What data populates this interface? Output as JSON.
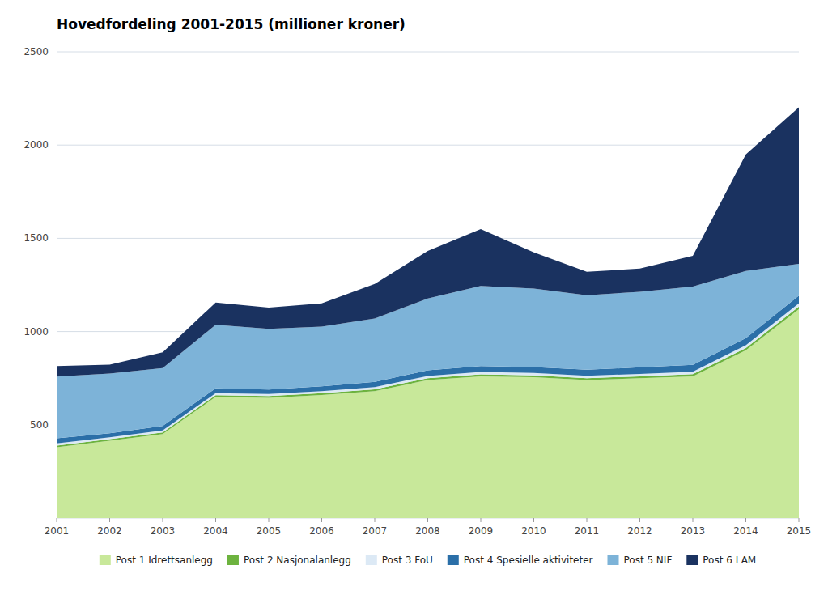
{
  "chart_data": {
    "type": "area",
    "stacked": true,
    "title": "Hovedfordeling 2001-2015 (millioner kroner)",
    "x": [
      2001,
      2002,
      2003,
      2004,
      2005,
      2006,
      2007,
      2008,
      2009,
      2010,
      2011,
      2012,
      2013,
      2014,
      2015
    ],
    "series": [
      {
        "name": "Post 1 Idrettsanlegg",
        "color": "#c8e89a",
        "values": [
          380,
          415,
          450,
          650,
          645,
          660,
          680,
          740,
          760,
          755,
          740,
          750,
          760,
          900,
          1120
        ]
      },
      {
        "name": "Post 2 Nasjonalanlegg",
        "color": "#6db33f",
        "values": [
          8,
          8,
          9,
          9,
          9,
          9,
          10,
          10,
          10,
          10,
          10,
          10,
          11,
          12,
          14
        ]
      },
      {
        "name": "Post 3 FoU",
        "color": "#dce9f5",
        "values": [
          12,
          10,
          11,
          11,
          11,
          11,
          12,
          12,
          13,
          13,
          13,
          13,
          14,
          15,
          17
        ]
      },
      {
        "name": "Post 4 Spesielle aktiviteter",
        "color": "#2b6fa8",
        "values": [
          28,
          22,
          24,
          26,
          24,
          26,
          28,
          30,
          32,
          32,
          32,
          35,
          36,
          38,
          42
        ]
      },
      {
        "name": "Post 5 NIF",
        "color": "#7db3d8",
        "values": [
          330,
          320,
          310,
          340,
          325,
          320,
          340,
          385,
          430,
          420,
          400,
          405,
          420,
          360,
          170
        ]
      },
      {
        "name": "Post 6 LAM",
        "color": "#1a3260",
        "values": [
          57,
          48,
          85,
          120,
          115,
          125,
          185,
          255,
          305,
          195,
          125,
          125,
          165,
          625,
          840
        ]
      }
    ],
    "xlim": [
      2001,
      2015
    ],
    "xticks": [
      2001,
      2002,
      2003,
      2004,
      2005,
      2006,
      2007,
      2008,
      2009,
      2010,
      2011,
      2012,
      2013,
      2014,
      2015
    ],
    "ylim": [
      0,
      2500
    ],
    "yticks": [
      {
        "value": 0,
        "label": null
      },
      500,
      1000,
      1500,
      2000,
      2500
    ],
    "grid": true,
    "legend": "bottom"
  }
}
